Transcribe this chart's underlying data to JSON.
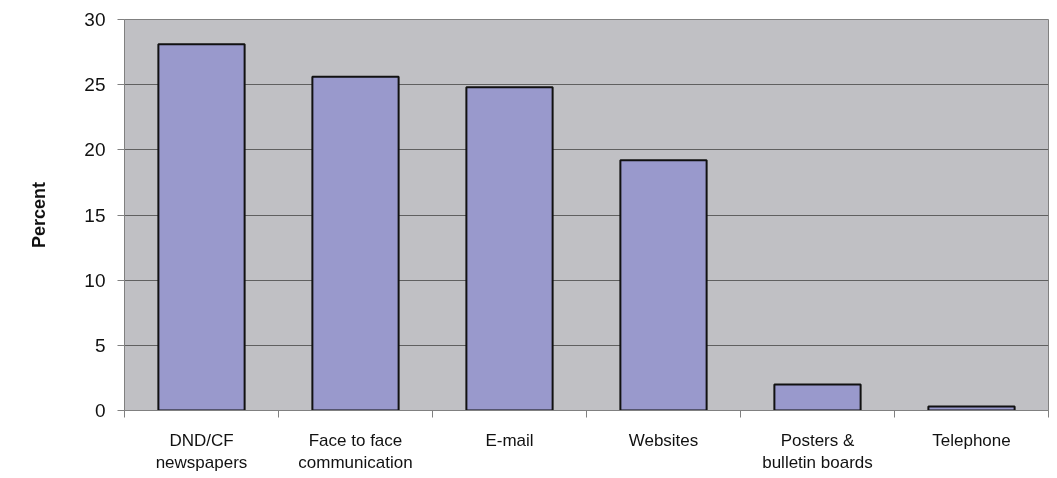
{
  "chart_data": {
    "type": "bar",
    "ylabel": "Percent",
    "categories": [
      "DND/CF newspapers",
      "Face to face communication",
      "E-mail",
      "Websites",
      "Posters & bulletin boards",
      "Telephone"
    ],
    "values": [
      28.1,
      25.6,
      24.8,
      19.2,
      2.0,
      0.3
    ],
    "color": "#9999cc",
    "ylim": [
      0,
      30
    ],
    "yticks": [
      0,
      5,
      10,
      15,
      20,
      25,
      30
    ],
    "grid": "y"
  }
}
